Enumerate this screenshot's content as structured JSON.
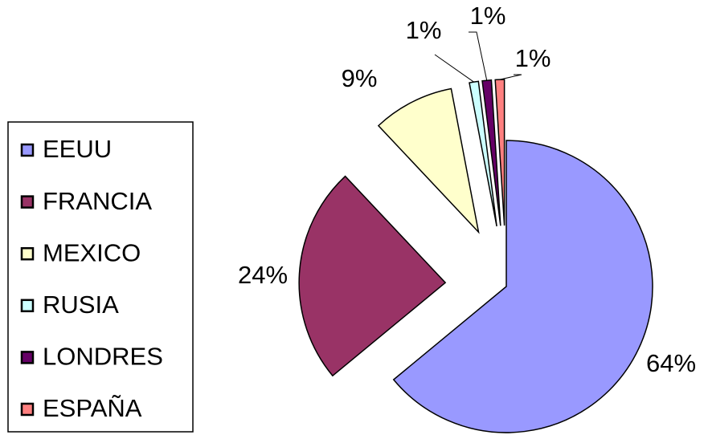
{
  "chart_data": {
    "type": "pie",
    "categories": [
      "EEUU",
      "FRANCIA",
      "MEXICO",
      "RUSIA",
      "LONDRES",
      "ESPAÑA"
    ],
    "values": [
      64,
      24,
      9,
      1,
      1,
      1
    ],
    "value_labels": [
      "64%",
      "24%",
      "9%",
      "1%",
      "1%",
      "1%"
    ],
    "colors": [
      "#9999ff",
      "#993366",
      "#ffffcc",
      "#ccffff",
      "#660066",
      "#ff8080"
    ],
    "legend": "left"
  }
}
